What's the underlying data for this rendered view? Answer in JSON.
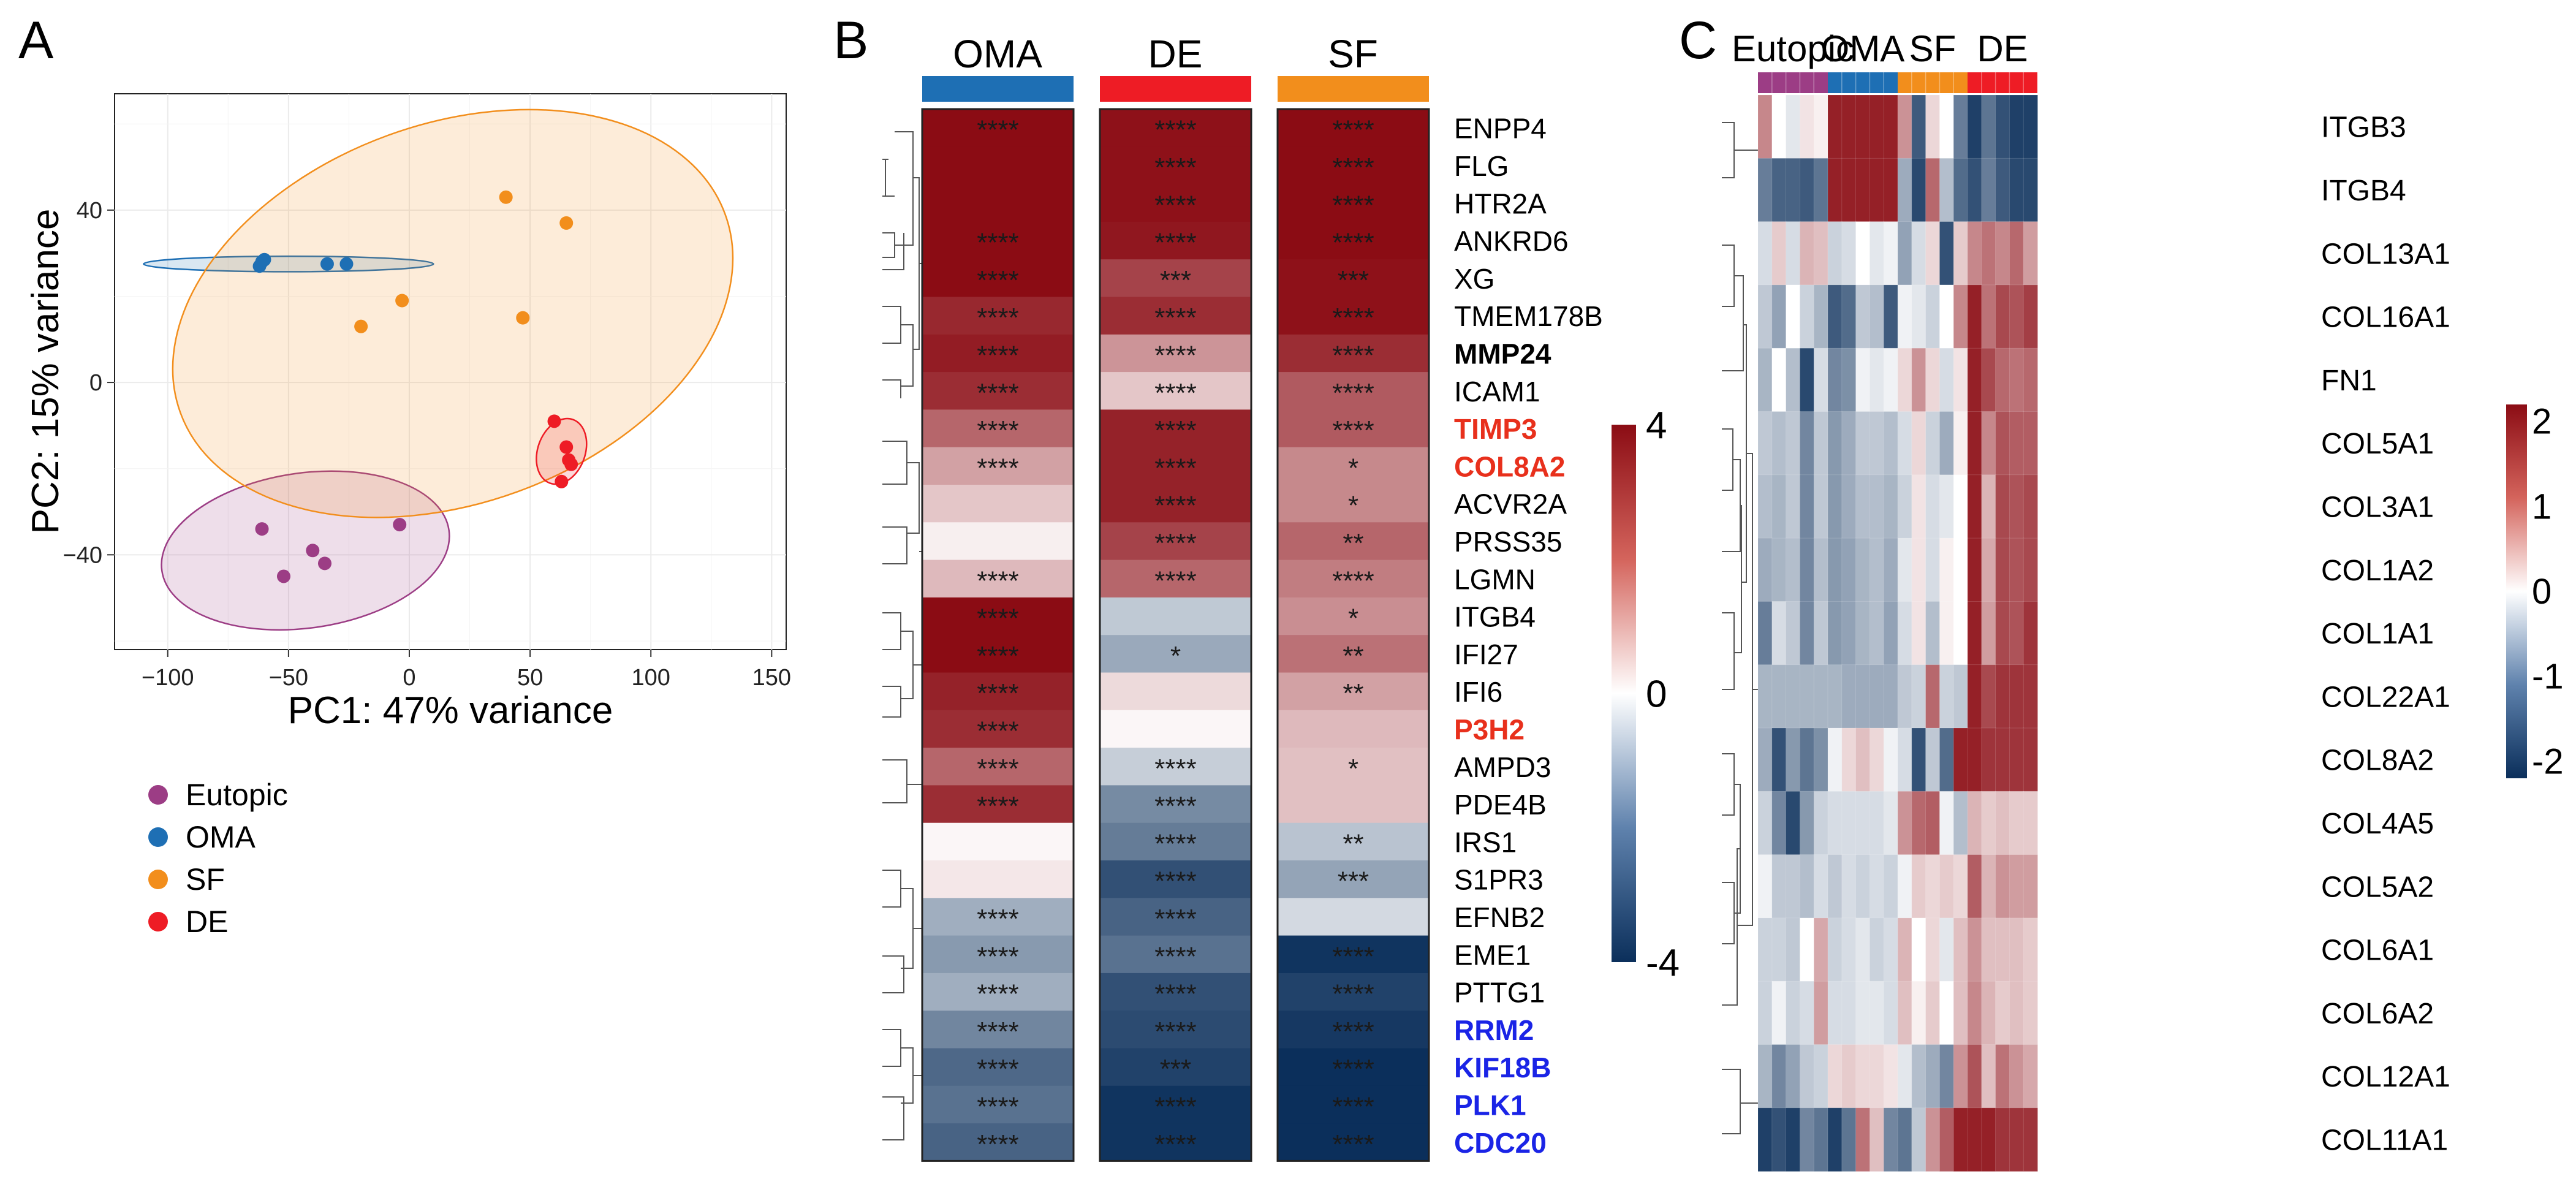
{
  "panels": {
    "A": {
      "letter": "A"
    },
    "B": {
      "letter": "B"
    },
    "C": {
      "letter": "C"
    }
  },
  "colors": {
    "eutopic": "#9C3D85",
    "oma": "#1E6FB4",
    "sf": "#F28E1C",
    "de": "#EE1C25",
    "high": "#8B0C14",
    "mid": "#FFFFFF",
    "low": "#0B2F5B",
    "gene_red": "#E8301C",
    "gene_blue": "#1A24E6"
  },
  "chart_data": [
    {
      "id": "A",
      "type": "scatter",
      "title": "",
      "xlabel": "PC1: 47% variance",
      "ylabel": "PC2: 15% variance",
      "xlim": [
        -122,
        156
      ],
      "ylim": [
        -62,
        67
      ],
      "xticks": [
        -100,
        -50,
        0,
        50,
        100,
        150
      ],
      "yticks": [
        -40,
        0,
        40
      ],
      "xtick_labels": [
        "−100",
        "−50",
        "0",
        "50",
        "100",
        "150"
      ],
      "ytick_labels": [
        "−40",
        "0",
        "40"
      ],
      "grid": true,
      "legend_position": "below-left",
      "series": [
        {
          "name": "Eutopic",
          "color_key": "eutopic",
          "points": [
            [
              -61,
              -34
            ],
            [
              -52,
              -45
            ],
            [
              -40,
              -39
            ],
            [
              -35,
              -42
            ],
            [
              -4,
              -33
            ]
          ],
          "ellipse": {
            "cx": -43,
            "cy": -39,
            "rx": 60,
            "ry": 18,
            "angle": 8
          }
        },
        {
          "name": "OMA",
          "color_key": "oma",
          "points": [
            [
              -62,
              27
            ],
            [
              -61,
              28
            ],
            [
              -60,
              28.5
            ],
            [
              -34,
              27.5
            ],
            [
              -26,
              27.5
            ]
          ],
          "ellipse": {
            "cx": -50,
            "cy": 27.5,
            "rx": 60,
            "ry": 1.8,
            "angle": 0
          }
        },
        {
          "name": "SF",
          "color_key": "sf",
          "points": [
            [
              40,
              43
            ],
            [
              65,
              37
            ],
            [
              -3,
              19
            ],
            [
              -20,
              13
            ],
            [
              47,
              15
            ]
          ],
          "ellipse": {
            "cx": 18,
            "cy": 16,
            "rx": 120,
            "ry": 44,
            "angle": 20
          }
        },
        {
          "name": "DE",
          "color_key": "de",
          "points": [
            [
              60,
              -9
            ],
            [
              65,
              -15
            ],
            [
              66,
              -18
            ],
            [
              67,
              -19
            ],
            [
              63,
              -23
            ]
          ],
          "ellipse": {
            "cx": 63,
            "cy": -16,
            "rx": 14,
            "ry": 5.5,
            "angle": 70
          }
        }
      ]
    },
    {
      "id": "B",
      "type": "heatmap",
      "title": "",
      "columns": [
        "OMA",
        "DE",
        "SF"
      ],
      "column_color_keys": [
        "oma",
        "de",
        "sf"
      ],
      "scale": {
        "min": -4,
        "max": 4,
        "ticks": [
          4,
          0,
          -4
        ],
        "tick_labels": [
          "4",
          "0",
          "-4"
        ]
      },
      "rows": [
        {
          "gene": "ENPP4",
          "style": "normal",
          "values": [
            4.0,
            3.9,
            4.0
          ],
          "sig": [
            "****",
            "****",
            "****"
          ]
        },
        {
          "gene": "FLG",
          "style": "normal",
          "values": [
            4.0,
            3.9,
            4.0
          ],
          "sig": [
            "",
            "****",
            "****"
          ]
        },
        {
          "gene": "HTR2A",
          "style": "normal",
          "values": [
            4.0,
            3.9,
            4.0
          ],
          "sig": [
            "",
            "****",
            "****"
          ]
        },
        {
          "gene": "ANKRD6",
          "style": "normal",
          "values": [
            4.0,
            3.8,
            4.0
          ],
          "sig": [
            "****",
            "****",
            "****"
          ]
        },
        {
          "gene": "XG",
          "style": "normal",
          "values": [
            4.0,
            3.0,
            3.9
          ],
          "sig": [
            "****",
            "***",
            "***"
          ]
        },
        {
          "gene": "TMEM178B",
          "style": "normal",
          "values": [
            3.5,
            3.4,
            3.9
          ],
          "sig": [
            "****",
            "****",
            "****"
          ]
        },
        {
          "gene": "MMP24",
          "style": "bold",
          "values": [
            3.7,
            1.6,
            3.4
          ],
          "sig": [
            "****",
            "****",
            "****"
          ]
        },
        {
          "gene": "ICAM1",
          "style": "normal",
          "values": [
            3.4,
            0.8,
            2.6
          ],
          "sig": [
            "****",
            "****",
            "****"
          ]
        },
        {
          "gene": "TIMP3",
          "style": "red",
          "values": [
            2.4,
            3.6,
            2.6
          ],
          "sig": [
            "****",
            "****",
            "****"
          ]
        },
        {
          "gene": "COL8A2",
          "style": "red",
          "values": [
            1.4,
            3.6,
            1.8
          ],
          "sig": [
            "****",
            "****",
            "*"
          ]
        },
        {
          "gene": "ACVR2A",
          "style": "normal",
          "values": [
            0.8,
            3.6,
            1.8
          ],
          "sig": [
            "",
            "****",
            "*"
          ]
        },
        {
          "gene": "PRSS35",
          "style": "normal",
          "values": [
            0.2,
            3.0,
            2.4
          ],
          "sig": [
            "",
            "****",
            "**"
          ]
        },
        {
          "gene": "LGMN",
          "style": "normal",
          "values": [
            1.0,
            2.4,
            2.0
          ],
          "sig": [
            "****",
            "****",
            "****"
          ]
        },
        {
          "gene": "ITGB4",
          "style": "normal",
          "values": [
            4.0,
            -0.9,
            1.7
          ],
          "sig": [
            "****",
            "",
            "*"
          ]
        },
        {
          "gene": "IFI27",
          "style": "normal",
          "values": [
            4.0,
            -1.5,
            2.2
          ],
          "sig": [
            "****",
            "*",
            "**"
          ]
        },
        {
          "gene": "IFI6",
          "style": "normal",
          "values": [
            3.6,
            0.5,
            1.4
          ],
          "sig": [
            "****",
            "",
            "**"
          ]
        },
        {
          "gene": "P3H2",
          "style": "red",
          "values": [
            3.4,
            0.1,
            1.0
          ],
          "sig": [
            "****",
            "",
            ""
          ]
        },
        {
          "gene": "AMPD3",
          "style": "normal",
          "values": [
            2.4,
            -0.8,
            0.9
          ],
          "sig": [
            "****",
            "****",
            "*"
          ]
        },
        {
          "gene": "PDE4B",
          "style": "normal",
          "values": [
            3.4,
            -2.1,
            0.9
          ],
          "sig": [
            "****",
            "****",
            ""
          ]
        },
        {
          "gene": "IRS1",
          "style": "normal",
          "values": [
            0.1,
            -2.4,
            -1.0
          ],
          "sig": [
            "",
            "****",
            "**"
          ]
        },
        {
          "gene": "S1PR3",
          "style": "normal",
          "values": [
            0.3,
            -3.3,
            -1.6
          ],
          "sig": [
            "",
            "****",
            "***"
          ]
        },
        {
          "gene": "EFNB2",
          "style": "normal",
          "values": [
            -1.4,
            -2.9,
            -0.6
          ],
          "sig": [
            "****",
            "****",
            ""
          ]
        },
        {
          "gene": "EME1",
          "style": "normal",
          "values": [
            -1.8,
            -2.6,
            -3.9
          ],
          "sig": [
            "****",
            "****",
            "****"
          ]
        },
        {
          "gene": "PTTG1",
          "style": "normal",
          "values": [
            -1.4,
            -3.3,
            -3.6
          ],
          "sig": [
            "****",
            "****",
            "****"
          ]
        },
        {
          "gene": "RRM2",
          "style": "blue",
          "values": [
            -2.2,
            -3.4,
            -3.8
          ],
          "sig": [
            "****",
            "****",
            "****"
          ]
        },
        {
          "gene": "KIF18B",
          "style": "blue",
          "values": [
            -2.8,
            -3.6,
            -4.0
          ],
          "sig": [
            "****",
            "***",
            "****"
          ]
        },
        {
          "gene": "PLK1",
          "style": "blue",
          "values": [
            -2.6,
            -3.9,
            -4.0
          ],
          "sig": [
            "****",
            "****",
            "****"
          ]
        },
        {
          "gene": "CDC20",
          "style": "blue",
          "values": [
            -2.9,
            -3.9,
            -4.0
          ],
          "sig": [
            "****",
            "****",
            "****"
          ]
        }
      ]
    },
    {
      "id": "C",
      "type": "heatmap",
      "title": "",
      "groups": [
        {
          "name": "Eutopic",
          "color_key": "eutopic",
          "n": 5
        },
        {
          "name": "OMA",
          "color_key": "oma",
          "n": 5
        },
        {
          "name": "SF",
          "color_key": "sf",
          "n": 5
        },
        {
          "name": "DE",
          "color_key": "de",
          "n": 5
        }
      ],
      "scale": {
        "min": -2.2,
        "max": 2.2,
        "ticks": [
          2,
          1,
          0,
          -1,
          -2
        ],
        "tick_labels": [
          "2",
          "1",
          "0",
          "-1",
          "-2"
        ]
      },
      "rows": [
        {
          "gene": "ITGB3",
          "values": [
            1.0,
            0.0,
            -0.2,
            0.2,
            0.1,
            2.0,
            2.0,
            2.0,
            2.0,
            2.0,
            0.9,
            -1.7,
            0.3,
            0.0,
            -1.3,
            -2.0,
            -1.4,
            -1.8,
            -2.0,
            -2.0
          ]
        },
        {
          "gene": "ITGB4",
          "values": [
            -1.3,
            -1.6,
            -1.6,
            -1.7,
            -1.4,
            2.0,
            2.0,
            2.0,
            2.0,
            2.0,
            -0.8,
            -1.9,
            1.3,
            -0.6,
            -1.5,
            -1.8,
            -1.3,
            -1.7,
            -1.9,
            -1.9
          ]
        },
        {
          "gene": "COL13A1",
          "values": [
            -0.3,
            0.4,
            -0.3,
            0.6,
            0.5,
            -0.4,
            -0.3,
            0.0,
            -0.2,
            -0.1,
            -0.9,
            -0.3,
            0.3,
            -1.8,
            0.4,
            1.0,
            1.2,
            1.0,
            1.3,
            0.8
          ]
        },
        {
          "gene": "COL16A1",
          "values": [
            -0.5,
            -0.9,
            0.0,
            -0.4,
            -0.7,
            -1.7,
            -1.5,
            -0.5,
            -0.6,
            -1.7,
            -0.1,
            -0.2,
            -0.4,
            0.0,
            1.0,
            2.0,
            1.2,
            1.6,
            1.5,
            1.7
          ]
        },
        {
          "gene": "FN1",
          "values": [
            -0.7,
            0.0,
            -0.6,
            -1.9,
            -0.3,
            -1.2,
            -1.1,
            -0.1,
            -0.2,
            -0.1,
            0.3,
            0.9,
            0.3,
            -0.3,
            0.2,
            2.0,
            1.6,
            1.3,
            1.2,
            1.3
          ]
        },
        {
          "gene": "COL5A1",
          "values": [
            -0.5,
            -0.6,
            -0.5,
            -1.2,
            -0.5,
            -1.0,
            -0.8,
            -0.5,
            -0.5,
            -0.6,
            -0.3,
            0.3,
            -0.4,
            -0.8,
            0.1,
            2.0,
            1.0,
            1.5,
            1.4,
            1.4
          ]
        },
        {
          "gene": "COL3A1",
          "values": [
            -0.6,
            -0.7,
            -0.5,
            -1.2,
            -0.5,
            -1.0,
            -0.8,
            -0.6,
            -0.6,
            -0.7,
            -0.4,
            0.2,
            -0.3,
            -0.2,
            0.0,
            2.0,
            0.6,
            1.6,
            1.5,
            1.6
          ]
        },
        {
          "gene": "COL1A2",
          "values": [
            -0.8,
            -0.7,
            -0.6,
            -1.2,
            -0.6,
            -1.0,
            -0.9,
            -0.7,
            -0.6,
            -0.8,
            -0.2,
            0.2,
            -0.3,
            0.1,
            0.0,
            2.0,
            0.7,
            1.6,
            1.5,
            1.6
          ]
        },
        {
          "gene": "COL1A1",
          "values": [
            -1.3,
            -0.3,
            -0.5,
            -1.2,
            -0.5,
            -1.0,
            -0.9,
            -0.7,
            -0.6,
            -0.9,
            -0.3,
            0.2,
            -0.6,
            0.1,
            0.0,
            2.0,
            0.8,
            1.6,
            1.5,
            1.8
          ]
        },
        {
          "gene": "COL22A1",
          "values": [
            -0.7,
            -0.7,
            -0.7,
            -0.7,
            -0.7,
            -0.7,
            -0.8,
            -0.8,
            -0.8,
            -0.8,
            -0.5,
            -0.4,
            1.3,
            -0.4,
            -0.5,
            2.0,
            1.6,
            1.8,
            1.8,
            1.8
          ]
        },
        {
          "gene": "COL8A2",
          "values": [
            -0.8,
            -1.8,
            -1.0,
            -1.4,
            -1.1,
            -0.1,
            0.3,
            0.5,
            0.3,
            -0.1,
            -0.3,
            -1.8,
            -0.5,
            -1.5,
            2.0,
            2.0,
            1.8,
            1.8,
            1.8,
            1.8
          ]
        },
        {
          "gene": "COL4A5",
          "values": [
            -0.4,
            -1.2,
            -1.9,
            -1.0,
            -0.4,
            -0.3,
            -0.3,
            -0.3,
            -0.3,
            -0.2,
            0.9,
            1.3,
            1.4,
            -0.1,
            -0.6,
            0.6,
            0.4,
            0.5,
            0.4,
            0.4
          ]
        },
        {
          "gene": "COL5A2",
          "values": [
            -0.1,
            -0.5,
            -0.5,
            -0.6,
            -0.3,
            -0.5,
            -0.3,
            -0.4,
            -0.3,
            -0.4,
            -0.1,
            0.4,
            0.3,
            0.4,
            0.3,
            1.4,
            0.6,
            0.9,
            0.8,
            0.8
          ]
        },
        {
          "gene": "COL6A1",
          "values": [
            -0.4,
            -0.4,
            -0.5,
            0.0,
            0.7,
            -0.4,
            -0.3,
            -0.2,
            -0.4,
            -0.3,
            0.6,
            0.0,
            0.3,
            -0.2,
            0.5,
            0.9,
            0.5,
            0.5,
            0.5,
            0.4
          ]
        },
        {
          "gene": "COL6A2",
          "values": [
            -0.4,
            -0.1,
            -0.4,
            -0.3,
            0.8,
            -0.3,
            -0.3,
            -0.2,
            -0.2,
            -0.3,
            0.5,
            0.1,
            0.4,
            0.0,
            0.5,
            1.0,
            0.6,
            0.4,
            0.5,
            0.4
          ]
        },
        {
          "gene": "COL12A1",
          "values": [
            -0.7,
            -1.2,
            -0.9,
            -0.5,
            -0.4,
            0.3,
            0.4,
            0.3,
            0.3,
            0.2,
            -0.2,
            -0.6,
            -0.8,
            -1.2,
            0.9,
            1.5,
            0.5,
            1.2,
            0.9,
            0.7
          ]
        },
        {
          "gene": "COL11A1",
          "values": [
            -2.0,
            -1.8,
            -2.0,
            -1.2,
            -1.4,
            -2.0,
            -1.4,
            1.2,
            0.5,
            -1.2,
            -1.4,
            -0.5,
            0.9,
            1.4,
            2.0,
            2.0,
            2.0,
            1.8,
            1.8,
            1.8
          ]
        }
      ]
    }
  ]
}
